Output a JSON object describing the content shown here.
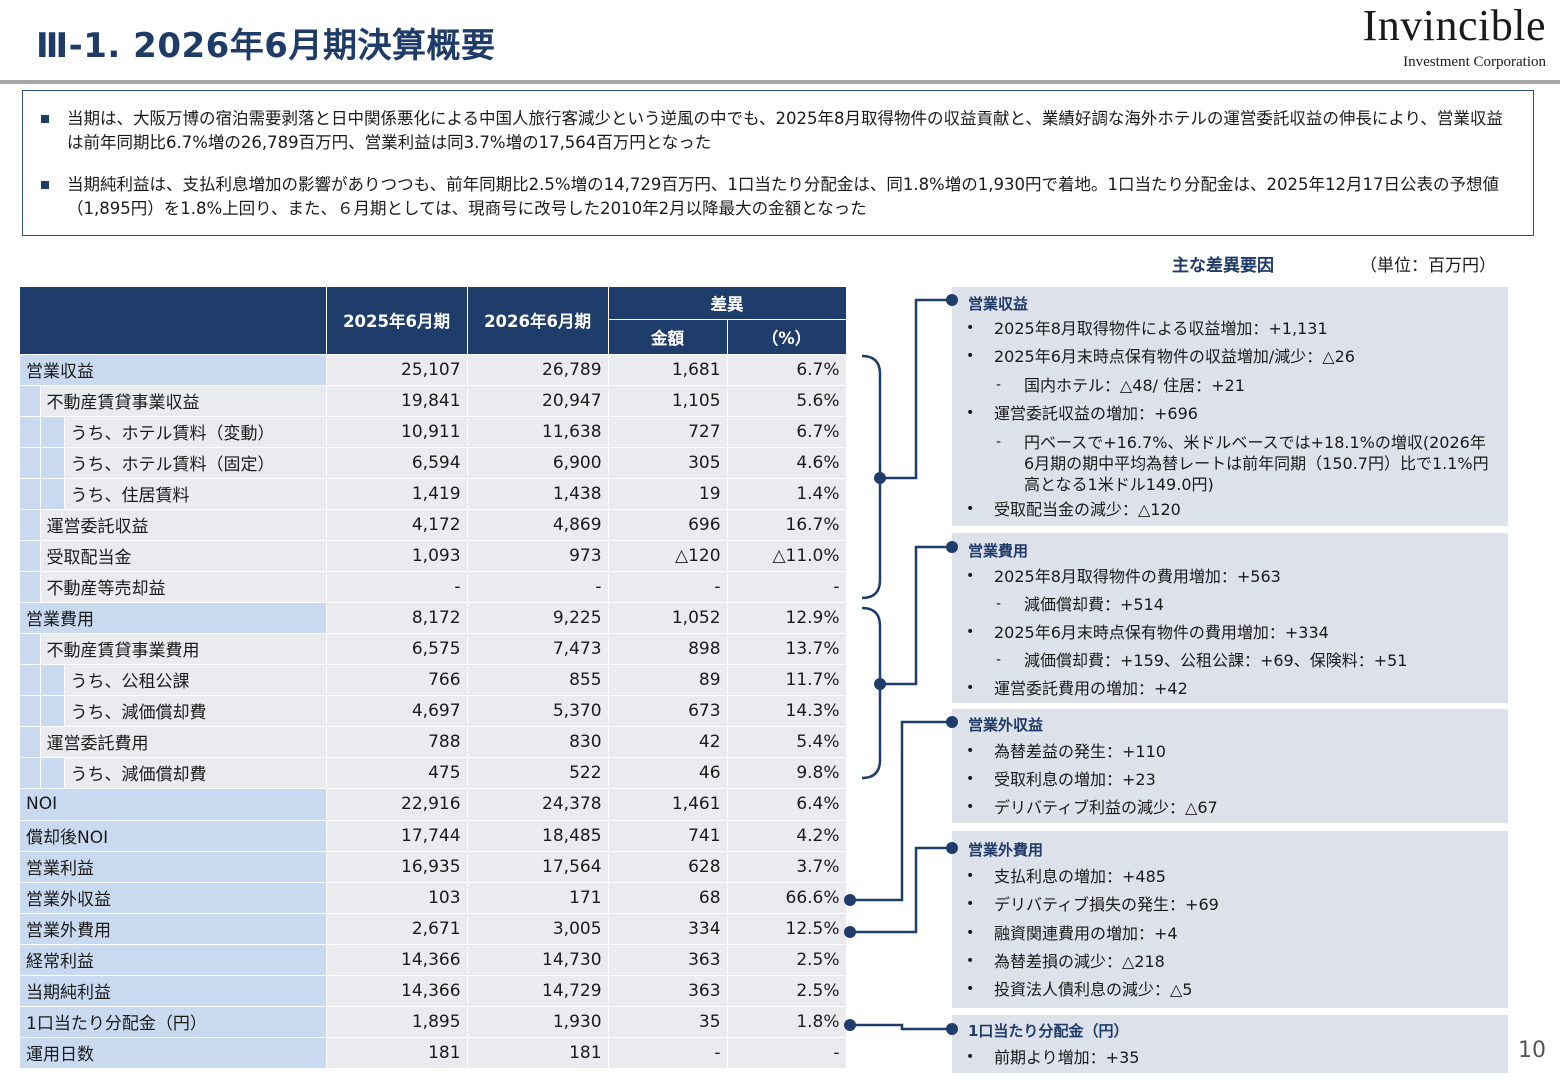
{
  "title": "Ⅲ-1. 2026年6月期決算概要",
  "logo": {
    "name": "Invincible",
    "sub": "Investment Corporation"
  },
  "summary": [
    "当期は、大阪万博の宿泊需要剥落と日中関係悪化による中国人旅行客減少という逆風の中でも、2025年8月取得物件の収益貢献と、業績好調な海外ホテルの運営委託収益の伸長により、営業収益は前年同期比6.7%増の26,789百万円、営業利益は同3.7%増の17,564百万円となった",
    "当期純利益は、支払利息増加の影響がありつつも、前年同期比2.5%増の14,729百万円、1口当たり分配金は、同1.8%増の1,930円で着地。1口当たり分配金は、2025年12月17日公表の予想値（1,895円）を1.8%上回り、また、６月期としては、現商号に改号した2010年2月以降最大の金額となった"
  ],
  "main_factor_label": "主な差異要因",
  "unit_label": "（単位：百万円）",
  "table": {
    "headers": {
      "fy2025": "2025年6月期",
      "fy2026": "2026年6月期",
      "diff": "差異",
      "amount": "金額",
      "pct": "（%）"
    },
    "rows": [
      {
        "label": "営業収益",
        "level": 0,
        "v25": "25,107",
        "v26": "26,789",
        "diff": "1,681",
        "pct": "6.7%"
      },
      {
        "label": "不動産賃貸事業収益",
        "level": 1,
        "v25": "19,841",
        "v26": "20,947",
        "diff": "1,105",
        "pct": "5.6%"
      },
      {
        "label": "うち、ホテル賃料（変動）",
        "level": 2,
        "v25": "10,911",
        "v26": "11,638",
        "diff": "727",
        "pct": "6.7%"
      },
      {
        "label": "うち、ホテル賃料（固定）",
        "level": 2,
        "v25": "6,594",
        "v26": "6,900",
        "diff": "305",
        "pct": "4.6%"
      },
      {
        "label": "うち、住居賃料",
        "level": 2,
        "v25": "1,419",
        "v26": "1,438",
        "diff": "19",
        "pct": "1.4%"
      },
      {
        "label": "運営委託収益",
        "level": 1,
        "v25": "4,172",
        "v26": "4,869",
        "diff": "696",
        "pct": "16.7%"
      },
      {
        "label": "受取配当金",
        "level": 1,
        "v25": "1,093",
        "v26": "973",
        "diff": "△120",
        "pct": "△11.0%"
      },
      {
        "label": "不動産等売却益",
        "level": 1,
        "v25": "-",
        "v26": "-",
        "diff": "-",
        "pct": "-"
      },
      {
        "label": "営業費用",
        "level": 0,
        "v25": "8,172",
        "v26": "9,225",
        "diff": "1,052",
        "pct": "12.9%"
      },
      {
        "label": "不動産賃貸事業費用",
        "level": 1,
        "v25": "6,575",
        "v26": "7,473",
        "diff": "898",
        "pct": "13.7%"
      },
      {
        "label": "うち、公租公課",
        "level": 2,
        "v25": "766",
        "v26": "855",
        "diff": "89",
        "pct": "11.7%"
      },
      {
        "label": "うち、減価償却費",
        "level": 2,
        "v25": "4,697",
        "v26": "5,370",
        "diff": "673",
        "pct": "14.3%"
      },
      {
        "label": "運営委託費用",
        "level": 1,
        "v25": "788",
        "v26": "830",
        "diff": "42",
        "pct": "5.4%"
      },
      {
        "label": "うち、減価償却費",
        "level": 2,
        "v25": "475",
        "v26": "522",
        "diff": "46",
        "pct": "9.8%"
      },
      {
        "label": "NOI",
        "level": 0,
        "v25": "22,916",
        "v26": "24,378",
        "diff": "1,461",
        "pct": "6.4%"
      },
      {
        "label": "償却後NOI",
        "level": 0,
        "v25": "17,744",
        "v26": "18,485",
        "diff": "741",
        "pct": "4.2%"
      },
      {
        "label": "営業利益",
        "level": 0,
        "v25": "16,935",
        "v26": "17,564",
        "diff": "628",
        "pct": "3.7%"
      },
      {
        "label": "営業外収益",
        "level": 0,
        "v25": "103",
        "v26": "171",
        "diff": "68",
        "pct": "66.6%"
      },
      {
        "label": "営業外費用",
        "level": 0,
        "v25": "2,671",
        "v26": "3,005",
        "diff": "334",
        "pct": "12.5%"
      },
      {
        "label": "経常利益",
        "level": 0,
        "v25": "14,366",
        "v26": "14,730",
        "diff": "363",
        "pct": "2.5%"
      },
      {
        "label": "当期純利益",
        "level": 0,
        "v25": "14,366",
        "v26": "14,729",
        "diff": "363",
        "pct": "2.5%"
      },
      {
        "label": "1口当たり分配金（円）",
        "level": 0,
        "v25": "1,895",
        "v26": "1,930",
        "diff": "35",
        "pct": "1.8%"
      },
      {
        "label": "運用日数",
        "level": 0,
        "v25": "181",
        "v26": "181",
        "diff": "-",
        "pct": "-"
      }
    ]
  },
  "panels": [
    {
      "heading": "営業収益",
      "items": [
        {
          "type": "bullet",
          "text": "2025年8月取得物件による収益増加：+1,131"
        },
        {
          "type": "bullet",
          "text": "2025年6月末時点保有物件の収益増加/減少：△26"
        },
        {
          "type": "dash",
          "text": "国内ホテル：△48/ 住居：+21"
        },
        {
          "type": "bullet",
          "text": "運営委託収益の増加：+696"
        },
        {
          "type": "dash",
          "text": "円ベースで+16.7%、米ドルベースでは+18.1%の増収(2026年6月期の期中平均為替レートは前年同期（150.7円）比で1.1%円高となる1米ドル149.0円)"
        },
        {
          "type": "bullet",
          "text": "受取配当金の減少：△120"
        }
      ]
    },
    {
      "heading": "営業費用",
      "items": [
        {
          "type": "bullet",
          "text": "2025年8月取得物件の費用増加：+563"
        },
        {
          "type": "dash",
          "text": "減価償却費：+514"
        },
        {
          "type": "bullet",
          "text": "2025年6月末時点保有物件の費用増加：+334"
        },
        {
          "type": "dash",
          "text": "減価償却費：+159、公租公課：+69、保険料：+51"
        },
        {
          "type": "bullet",
          "text": "運営委託費用の増加：+42"
        }
      ]
    },
    {
      "heading": "営業外収益",
      "items": [
        {
          "type": "bullet",
          "text": "為替差益の発生：+110"
        },
        {
          "type": "bullet",
          "text": "受取利息の増加：+23"
        },
        {
          "type": "bullet",
          "text": "デリバティブ利益の減少：△67"
        }
      ]
    },
    {
      "heading": "営業外費用",
      "items": [
        {
          "type": "bullet",
          "text": "支払利息の増加：+485"
        },
        {
          "type": "bullet",
          "text": "デリバティブ損失の発生：+69"
        },
        {
          "type": "bullet",
          "text": "融資関連費用の増加：+4"
        },
        {
          "type": "bullet",
          "text": "為替差損の減少：△218"
        },
        {
          "type": "bullet",
          "text": "投資法人債利息の減少：△5"
        }
      ]
    },
    {
      "heading": "1口当たり分配金（円）",
      "items": [
        {
          "type": "bullet",
          "text": "前期より増加：+35"
        }
      ]
    }
  ],
  "page_number": "10",
  "colors": {
    "navy": "#1f3d6b",
    "label_blue": "#c9daf0",
    "cell_gray": "#e9ebee",
    "panel_bg": "#dde1ea"
  }
}
